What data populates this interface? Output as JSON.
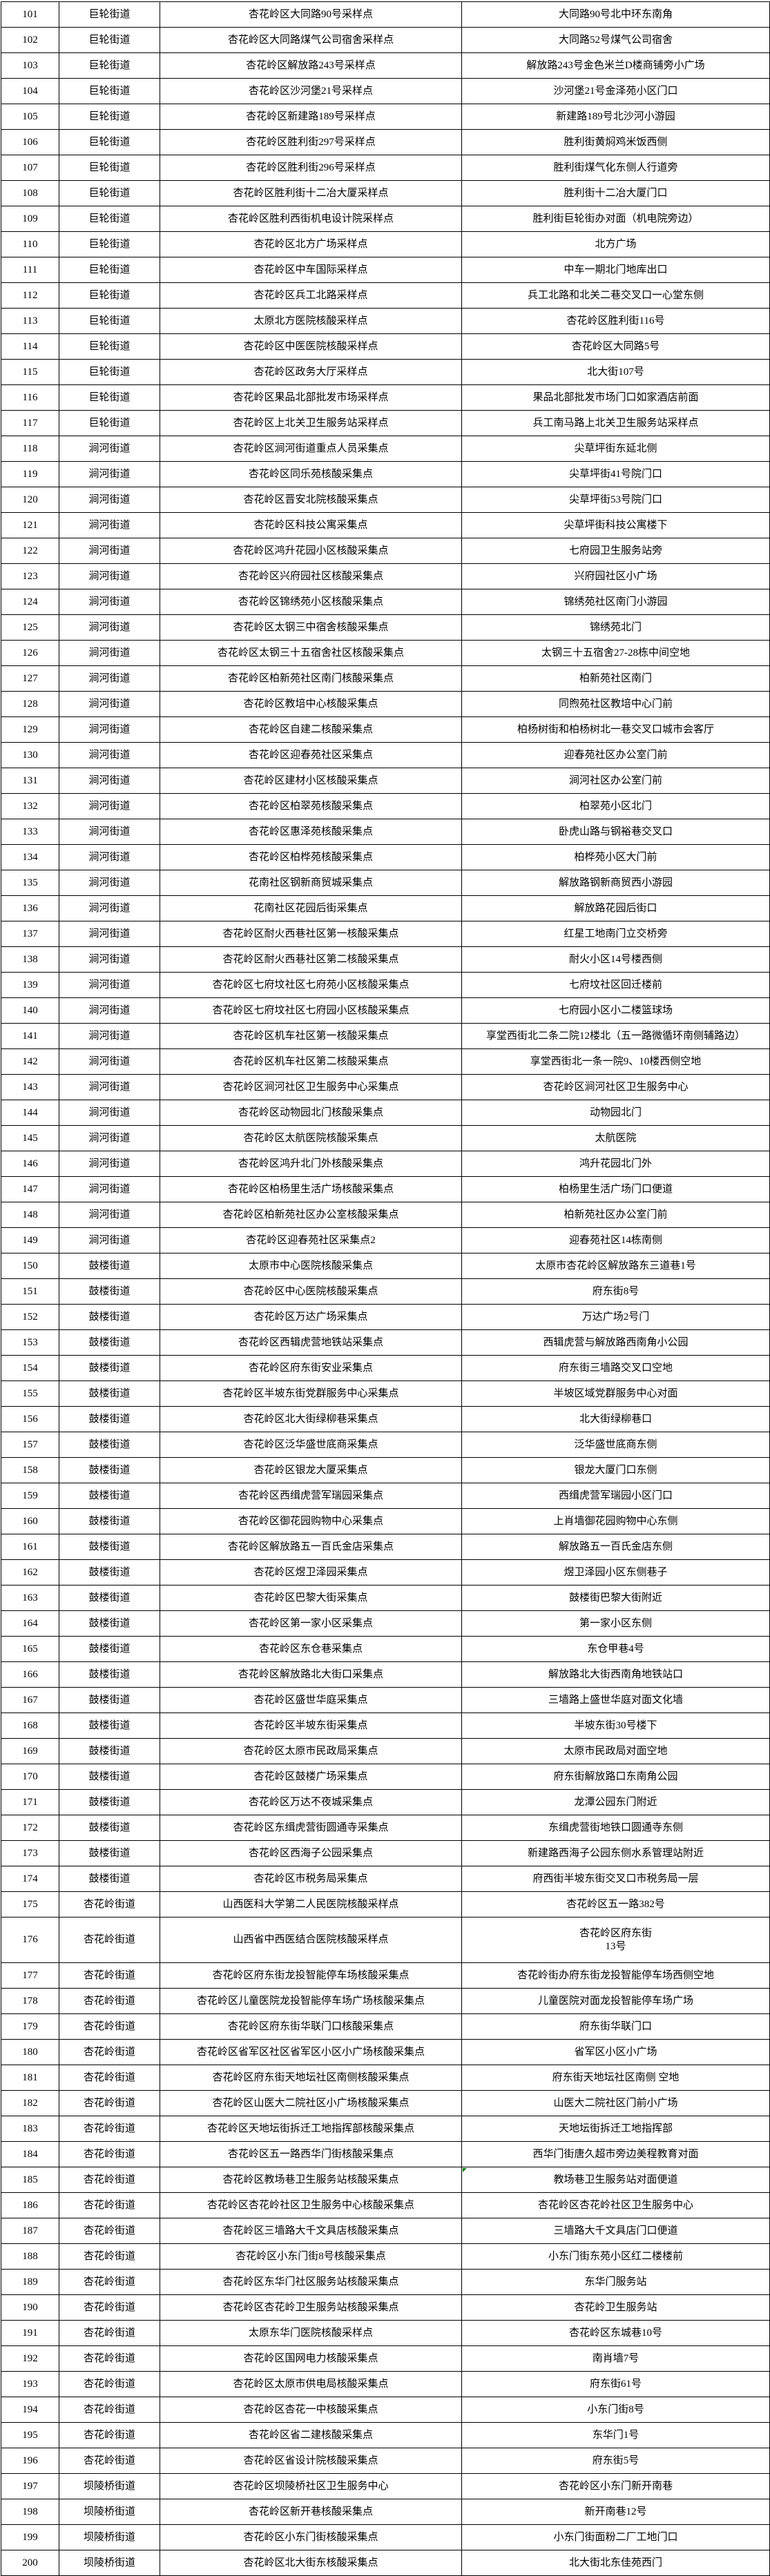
{
  "table": {
    "description_columns": [
      "row-number",
      "street",
      "site-name",
      "address"
    ],
    "colors": {
      "border": "#000000",
      "text": "#000000",
      "background": "#ffffff",
      "error_indicator": "#0a7d0a"
    },
    "tall_row_no": "176",
    "error_marker_row_no": "185",
    "rows": [
      [
        "101",
        "巨轮街道",
        "杏花岭区大同路90号采样点",
        "大同路90号北中环东南角"
      ],
      [
        "102",
        "巨轮街道",
        "杏花岭区大同路煤气公司宿舍采样点",
        "大同路52号煤气公司宿舍"
      ],
      [
        "103",
        "巨轮街道",
        "杏花岭区解放路243号采样点",
        "解放路243号金色米兰D楼商铺旁小广场"
      ],
      [
        "104",
        "巨轮街道",
        "杏花岭区沙河堡21号采样点",
        "沙河堡21号金泽苑小区门口"
      ],
      [
        "105",
        "巨轮街道",
        "杏花岭区新建路189号采样点",
        "新建路189号北沙河小游园"
      ],
      [
        "106",
        "巨轮街道",
        "杏花岭区胜利街297号采样点",
        "胜利街黄焖鸡米饭西侧"
      ],
      [
        "107",
        "巨轮街道",
        "杏花岭区胜利街296号采样点",
        "胜利街煤气化东侧人行道旁"
      ],
      [
        "108",
        "巨轮街道",
        "杏花岭区胜利街十二冶大厦采样点",
        "胜利街十二冶大厦门口"
      ],
      [
        "109",
        "巨轮街道",
        "杏花岭区胜利西街机电设计院采样点",
        "胜利街巨轮街办对面（机电院旁边）"
      ],
      [
        "110",
        "巨轮街道",
        "杏花岭区北方广场采样点",
        "北方广场"
      ],
      [
        "111",
        "巨轮街道",
        "杏花岭区中车国际采样点",
        "中车一期北门地库出口"
      ],
      [
        "112",
        "巨轮街道",
        "杏花岭区兵工北路采样点",
        "兵工北路和北关二巷交叉口一心堂东侧"
      ],
      [
        "113",
        "巨轮街道",
        "太原北方医院核酸采样点",
        "杏花岭区胜利街116号"
      ],
      [
        "114",
        "巨轮街道",
        "杏花岭区中医医院核酸采样点",
        "杏花岭区大同路5号"
      ],
      [
        "115",
        "巨轮街道",
        "杏花岭区政务大厅采样点",
        "北大街107号"
      ],
      [
        "116",
        "巨轮街道",
        "杏花岭区果品北部批发市场采样点",
        "果品北部批发市场门口如家酒店前面"
      ],
      [
        "117",
        "巨轮街道",
        "杏花岭区上北关卫生服务站采样点",
        "兵工南马路上北关卫生服务站采样点"
      ],
      [
        "118",
        "涧河街道",
        "杏花岭区涧河街道重点人员采集点",
        "尖草坪街东延北侧"
      ],
      [
        "119",
        "涧河街道",
        "杏花岭区同乐苑核酸采集点",
        "尖草坪街41号院门口"
      ],
      [
        "120",
        "涧河街道",
        "杏花岭区晋安北院核酸采集点",
        "尖草坪街53号院门口"
      ],
      [
        "121",
        "涧河街道",
        "杏花岭区科技公寓采集点",
        "尖草坪街科技公寓楼下"
      ],
      [
        "122",
        "涧河街道",
        "杏花岭区鸿升花园小区核酸采集点",
        "七府园卫生服务站旁"
      ],
      [
        "123",
        "涧河街道",
        "杏花岭区兴府园社区核酸采集点",
        "兴府园社区小广场"
      ],
      [
        "124",
        "涧河街道",
        "杏花岭区锦绣苑小区核酸采集点",
        "锦绣苑社区南门小游园"
      ],
      [
        "125",
        "涧河街道",
        "杏花岭区太钢三中宿舍核酸采集点",
        "锦绣苑北门"
      ],
      [
        "126",
        "涧河街道",
        "杏花岭区太钢三十五宿舍社区核酸采集点",
        "太钢三十五宿舍27-28栋中间空地"
      ],
      [
        "127",
        "涧河街道",
        "杏花岭区柏新苑社区南门核酸采集点",
        "柏新苑社区南门"
      ],
      [
        "128",
        "涧河街道",
        "杏花岭区教培中心核酸采集点",
        "同煦苑社区教培中心门前"
      ],
      [
        "129",
        "涧河街道",
        "杏花岭区自建二核酸采集点",
        "柏杨树街和柏杨树北一巷交叉口城市会客厅"
      ],
      [
        "130",
        "涧河街道",
        "杏花岭区迎春苑社区采集点",
        "迎春苑社区办公室门前"
      ],
      [
        "131",
        "涧河街道",
        "杏花岭区建材小区核酸采集点",
        "涧河社区办公室门前"
      ],
      [
        "132",
        "涧河街道",
        "杏花岭区柏翠苑核酸采集点",
        "柏翠苑小区北门"
      ],
      [
        "133",
        "涧河街道",
        "杏花岭区惠泽苑核酸采集点",
        "卧虎山路与钢裕巷交叉口"
      ],
      [
        "134",
        "涧河街道",
        "杏花岭区柏桦苑核酸采集点",
        "柏桦苑小区大门前"
      ],
      [
        "135",
        "涧河街道",
        "花南社区钢新商贸城采集点",
        "解放路钢新商贸西小游园"
      ],
      [
        "136",
        "涧河街道",
        "花南社区花园后街采集点",
        "解放路花园后街口"
      ],
      [
        "137",
        "涧河街道",
        "杏花岭区耐火西巷社区第一核酸采集点",
        "红星工地南门立交桥旁"
      ],
      [
        "138",
        "涧河街道",
        "杏花岭区耐火西巷社区第二核酸采集点",
        "耐火小区14号楼西侧"
      ],
      [
        "139",
        "涧河街道",
        "杏花岭区七府坟社区七府苑小区核酸采集点",
        "七府坟社区回迁楼前"
      ],
      [
        "140",
        "涧河街道",
        "杏花岭区七府坟社区七府园小区核酸采集点",
        "七府园小区小二楼篮球场"
      ],
      [
        "141",
        "涧河街道",
        "杏花岭区机车社区第一核酸采集点",
        "享堂西街北二条二院12楼北（五一路微循环南侧辅路边）"
      ],
      [
        "142",
        "涧河街道",
        "杏花岭区机车社区第二核酸采集点",
        "享堂西街北一条一院9、10楼西侧空地"
      ],
      [
        "143",
        "涧河街道",
        "杏花岭区涧河社区卫生服务中心采集点",
        "杏花岭区涧河社区卫生服务中心"
      ],
      [
        "144",
        "涧河街道",
        "杏花岭区动物园北门核酸采集点",
        "动物园北门"
      ],
      [
        "145",
        "涧河街道",
        "杏花岭区太航医院核酸采集点",
        "太航医院"
      ],
      [
        "146",
        "涧河街道",
        "杏花岭区鸿升北门外核酸采集点",
        "鸿升花园北门外"
      ],
      [
        "147",
        "涧河街道",
        "杏花岭区柏杨里生活广场核酸采集点",
        "柏杨里生活广场门口便道"
      ],
      [
        "148",
        "涧河街道",
        "杏花岭区柏新苑社区办公室核酸采集点",
        "柏新苑社区办公室门前"
      ],
      [
        "149",
        "涧河街道",
        "杏花岭区迎春苑社区采集点2",
        "迎春苑社区14栋南侧"
      ],
      [
        "150",
        "鼓楼街道",
        "太原市中心医院核酸采集点",
        "太原市杏花岭区解放路东三道巷1号"
      ],
      [
        "151",
        "鼓楼街道",
        "杏花岭区中心医院核酸采集点",
        "府东街8号"
      ],
      [
        "152",
        "鼓楼街道",
        "杏花岭区万达广场采集点",
        "万达广场2号门"
      ],
      [
        "153",
        "鼓楼街道",
        "杏花岭区西辑虎营地铁站采集点",
        "西辑虎营与解放路西南角小公园"
      ],
      [
        "154",
        "鼓楼街道",
        "杏花岭区府东街安业采集点",
        "府东街三墙路交叉口空地"
      ],
      [
        "155",
        "鼓楼街道",
        "杏花岭区半坡东街党群服务中心采集点",
        "半坡区域党群服务中心对面"
      ],
      [
        "156",
        "鼓楼街道",
        "杏花岭区北大街绿柳巷采集点",
        "北大街绿柳巷口"
      ],
      [
        "157",
        "鼓楼街道",
        "杏花岭区泛华盛世底商采集点",
        "泛华盛世底商东侧"
      ],
      [
        "158",
        "鼓楼街道",
        "杏花岭区银龙大厦采集点",
        "银龙大厦门口东侧"
      ],
      [
        "159",
        "鼓楼街道",
        "杏花岭区西缉虎营军瑞园采集点",
        "西缉虎营军瑞园小区门口"
      ],
      [
        "160",
        "鼓楼街道",
        "杏花岭区御花园购物中心采集点",
        "上肖墙御花园购物中心东侧"
      ],
      [
        "161",
        "鼓楼街道",
        "杏花岭区解放路五一百氏金店采集点",
        "解放路五一百氏金店东侧"
      ],
      [
        "162",
        "鼓楼街道",
        "杏花岭区煜卫泽园采集点",
        "煜卫泽园小区东侧巷子"
      ],
      [
        "163",
        "鼓楼街道",
        "杏花岭区巴黎大街采集点",
        "鼓楼街巴黎大街附近"
      ],
      [
        "164",
        "鼓楼街道",
        "杏花岭区第一家小区采集点",
        "第一家小区东侧"
      ],
      [
        "165",
        "鼓楼街道",
        "杏花岭区东仓巷采集点",
        "东仓甲巷4号"
      ],
      [
        "166",
        "鼓楼街道",
        "杏花岭区解放路北大街口采集点",
        "解放路北大街西南角地铁站口"
      ],
      [
        "167",
        "鼓楼街道",
        "杏花岭区盛世华庭采集点",
        "三墙路上盛世华庭对面文化墙"
      ],
      [
        "168",
        "鼓楼街道",
        "杏花岭区半坡东街采集点",
        "半坡东街30号楼下"
      ],
      [
        "169",
        "鼓楼街道",
        "杏花岭区太原市民政局采集点",
        "太原市民政局对面空地"
      ],
      [
        "170",
        "鼓楼街道",
        "杏花岭区鼓楼广场采集点",
        "府东街解放路口东南角公园"
      ],
      [
        "171",
        "鼓楼街道",
        "杏花岭区万达不夜城采集点",
        "龙潭公园东门附近"
      ],
      [
        "172",
        "鼓楼街道",
        "杏花岭区东缉虎营街圆通寺采集点",
        "东缉虎营街地铁口圆通寺东侧"
      ],
      [
        "173",
        "鼓楼街道",
        "杏花岭区西海子公园采集点",
        "新建路西海子公园东侧水系管理站附近"
      ],
      [
        "174",
        "鼓楼街道",
        "杏花岭区市税务局采集点",
        "府西街半坡东街交叉口市税务局一层"
      ],
      [
        "175",
        "杏花岭街道",
        "山西医科大学第二人民医院核酸采样点",
        "杏花岭区五一路382号"
      ],
      [
        "176",
        "杏花岭街道",
        "山西省中西医结合医院核酸采样点",
        "杏花岭区府东街\n13号"
      ],
      [
        "177",
        "杏花岭街道",
        "杏花岭区府东街龙投智能停车场核酸采集点",
        "杏花岭街办府东街龙投智能停车场西侧空地"
      ],
      [
        "178",
        "杏花岭街道",
        "杏花岭区儿童医院龙投智能停车场广场核酸采集点",
        "儿童医院对面龙投智能停车场广场"
      ],
      [
        "179",
        "杏花岭街道",
        "杏花岭区府东街华联门口核酸采集点",
        "府东街华联门口"
      ],
      [
        "180",
        "杏花岭街道",
        "杏花岭区省军区社区省军区小区小广场核酸采集点",
        "省军区小区小广场"
      ],
      [
        "181",
        "杏花岭街道",
        "杏花岭区府东街天地坛社区南侧核酸采集点",
        "府东街天地坛社区南侧 空地"
      ],
      [
        "182",
        "杏花岭街道",
        "杏花岭区山医大二院社区小广场核酸采集点",
        "山医大二院社区门前小广场"
      ],
      [
        "183",
        "杏花岭街道",
        "杏花岭区天地坛街拆迁工地指挥部核酸采集点",
        "天地坛街拆迁工地指挥部"
      ],
      [
        "184",
        "杏花岭街道",
        "杏花岭区五一路西华门街核酸采集点",
        "西华门街唐久超市旁边美程教育对面"
      ],
      [
        "185",
        "杏花岭街道",
        "杏花岭区教场巷卫生服务站核酸采集点",
        "教场巷卫生服务站对面便道"
      ],
      [
        "186",
        "杏花岭街道",
        "杏花岭区杏花岭社区卫生服务中心核酸采集点",
        "杏花岭区杏花岭社区卫生服务中心"
      ],
      [
        "187",
        "杏花岭街道",
        "杏花岭区三墙路大千文具店核酸采集点",
        "三墙路大千文具店门口便道"
      ],
      [
        "188",
        "杏花岭街道",
        "杏花岭区小东门街8号核酸采集点",
        "小东门街东苑小区红二楼楼前"
      ],
      [
        "189",
        "杏花岭街道",
        "杏花岭区东华门社区服务站核酸采集点",
        "东华门服务站"
      ],
      [
        "190",
        "杏花岭街道",
        "杏花岭区杏花岭卫生服务站核酸采集点",
        "杏花岭卫生服务站"
      ],
      [
        "191",
        "杏花岭街道",
        "太原东华门医院核酸采样点",
        "杏花岭区东城巷10号"
      ],
      [
        "192",
        "杏花岭街道",
        "杏花岭区国网电力核酸采集点",
        "南肖墙7号"
      ],
      [
        "193",
        "杏花岭街道",
        "杏花岭区太原市供电局核酸采集点",
        "府东街61号"
      ],
      [
        "194",
        "杏花岭街道",
        "杏花岭区杏花一中核酸采集点",
        "小东门街8号"
      ],
      [
        "195",
        "杏花岭街道",
        "杏花岭区省二建核酸采集点",
        "东华门1号"
      ],
      [
        "196",
        "杏花岭街道",
        "杏花岭区省设计院核酸采集点",
        "府东街5号"
      ],
      [
        "197",
        "坝陵桥街道",
        "杏花岭区坝陵桥社区卫生服务中心",
        "杏花岭区小东门新开南巷"
      ],
      [
        "198",
        "坝陵桥街道",
        "杏花岭区新开巷核酸采集点",
        "新开南巷12号"
      ],
      [
        "199",
        "坝陵桥街道",
        "杏花岭区小东门街核酸采集点",
        "小东门街面粉二厂工地门口"
      ],
      [
        "200",
        "坝陵桥街道",
        "杏花岭区北大街东核酸采集点",
        "北大街北东佳苑西门"
      ]
    ]
  }
}
